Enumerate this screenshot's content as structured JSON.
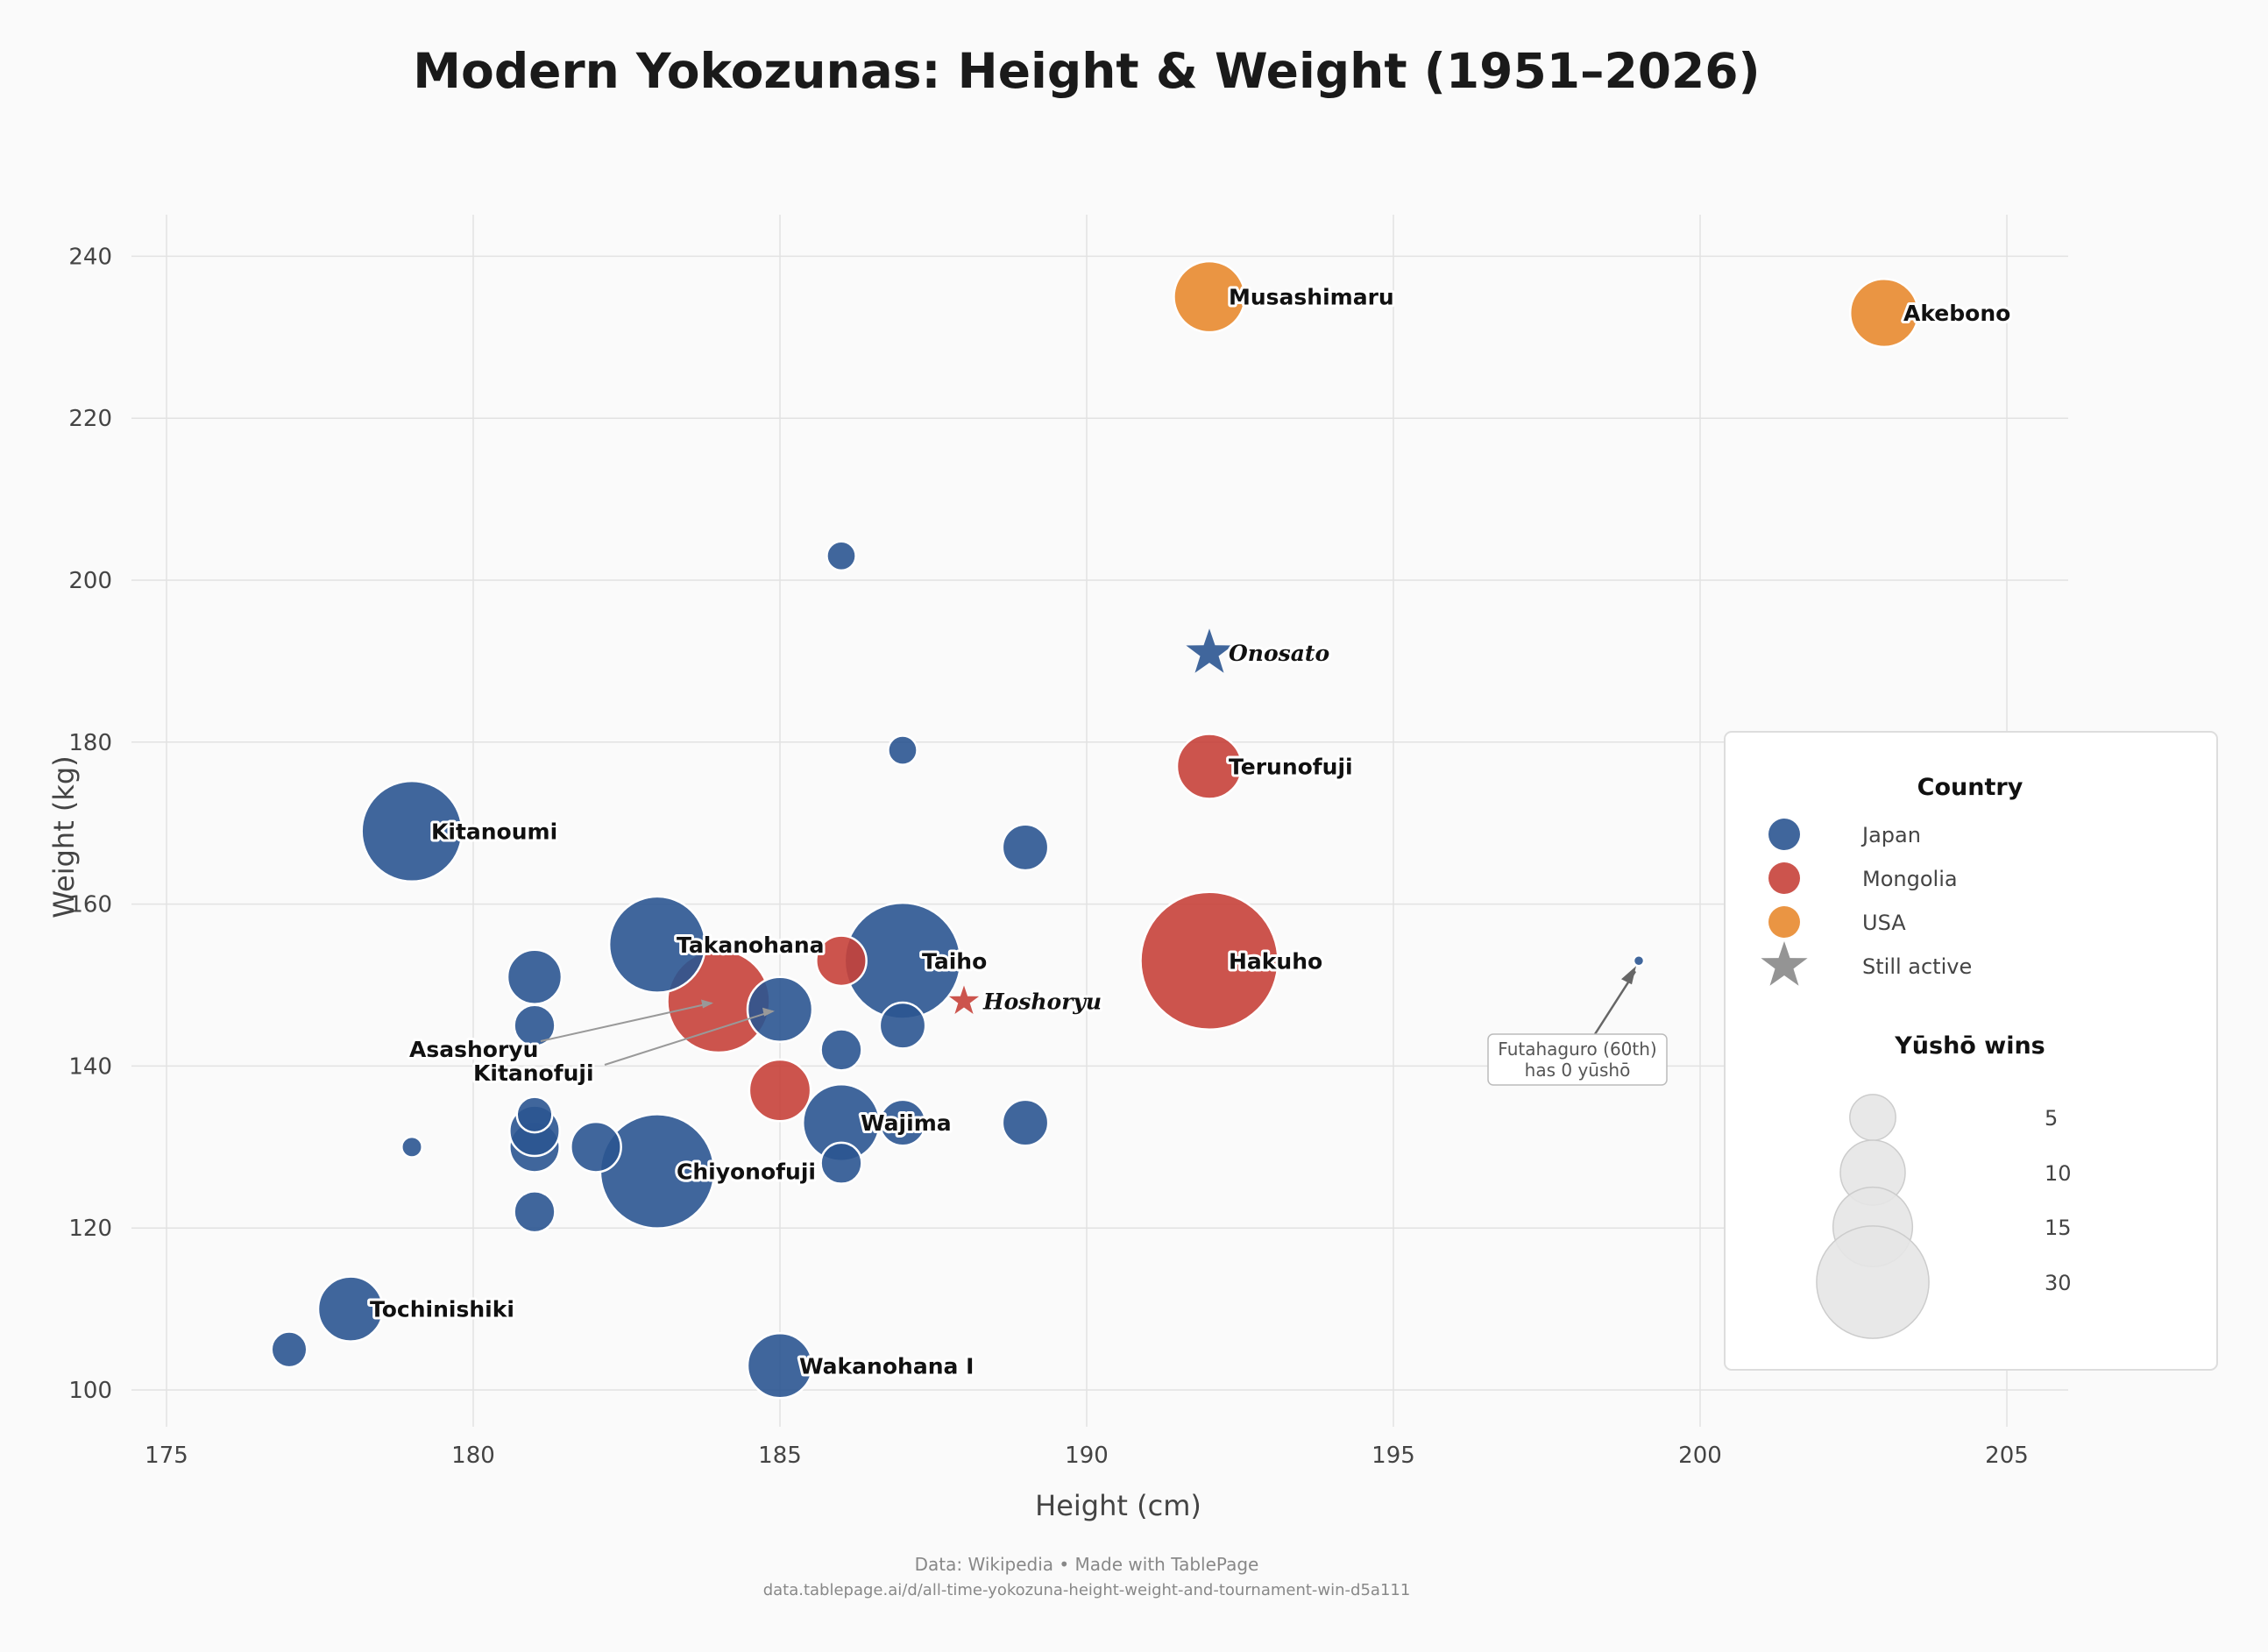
{
  "chart_data": {
    "type": "scatter",
    "title": "Modern Yokozunas: Height & Weight (1951–2026)",
    "xlabel": "Height (cm)",
    "ylabel": "Weight (kg)",
    "xlim": [
      175,
      206
    ],
    "ylim": [
      95,
      245
    ],
    "x_ticks": [
      175,
      180,
      185,
      190,
      195,
      200,
      205
    ],
    "y_ticks": [
      100,
      120,
      140,
      160,
      180,
      200,
      220,
      240
    ],
    "grid": true,
    "legend_placement": "right",
    "colors": {
      "Japan": "#2b5591",
      "Mongolia": "#c7413a",
      "USA": "#e8892f",
      "neutral": "#888888"
    },
    "country_legend": {
      "title": "Country",
      "items": [
        {
          "label": "Japan",
          "country": "Japan"
        },
        {
          "label": "Mongolia",
          "country": "Mongolia"
        },
        {
          "label": "USA",
          "country": "USA"
        },
        {
          "label": "Still active",
          "country": "neutral",
          "marker": "star"
        }
      ]
    },
    "size_legend": {
      "title": "Yūshō wins",
      "items": [
        {
          "label": "5",
          "value": 5
        },
        {
          "label": "10",
          "value": 10
        },
        {
          "label": "15",
          "value": 15
        },
        {
          "label": "30",
          "value": 30
        }
      ]
    },
    "points": [
      {
        "name": "Musashimaru",
        "x": 192,
        "y": 235,
        "yusho": 12,
        "country": "USA"
      },
      {
        "name": "Akebono",
        "x": 203,
        "y": 233,
        "yusho": 11,
        "country": "USA"
      },
      {
        "name": "Kitanoumi",
        "x": 179,
        "y": 169,
        "yusho": 24,
        "country": "Japan"
      },
      {
        "name": "Takanohana",
        "x": 183,
        "y": 155,
        "yusho": 22,
        "country": "Japan"
      },
      {
        "name": "Taiho",
        "x": 187,
        "y": 153,
        "yusho": 32,
        "country": "Japan"
      },
      {
        "name": "Hakuho",
        "x": 192,
        "y": 153,
        "yusho": 45,
        "country": "Mongolia"
      },
      {
        "name": "Asashoryu",
        "x": 184,
        "y": 148,
        "yusho": 25,
        "country": "Mongolia"
      },
      {
        "name": "Chiyonofuji",
        "x": 183,
        "y": 127,
        "yusho": 31,
        "country": "Japan"
      },
      {
        "name": "Wajima",
        "x": 186,
        "y": 133,
        "yusho": 14,
        "country": "Japan"
      },
      {
        "name": "Kitanofuji",
        "x": 185,
        "y": 147,
        "yusho": 10,
        "country": "Japan"
      },
      {
        "name": "Terunofuji",
        "x": 192,
        "y": 177,
        "yusho": 10,
        "country": "Mongolia"
      },
      {
        "name": "Tochinishiki",
        "x": 178,
        "y": 110,
        "yusho": 10,
        "country": "Japan"
      },
      {
        "name": "Wakanohana I",
        "x": 185,
        "y": 103,
        "yusho": 10,
        "country": "Japan"
      },
      {
        "name": "Onosato",
        "x": 192,
        "y": 191,
        "yusho": 5,
        "country": "Japan",
        "active": true
      },
      {
        "name": "Hoshoryu",
        "x": 188,
        "y": 148,
        "yusho": 3,
        "country": "Mongolia",
        "active": true
      },
      {
        "name": "Futahaguro",
        "x": 199,
        "y": 153,
        "yusho": 0,
        "country": "Japan"
      },
      {
        "x": 186,
        "y": 203,
        "yusho": 2,
        "country": "Japan"
      },
      {
        "x": 187,
        "y": 179,
        "yusho": 2,
        "country": "Japan"
      },
      {
        "x": 189,
        "y": 167,
        "yusho": 5,
        "country": "Japan"
      },
      {
        "x": 181,
        "y": 151,
        "yusho": 7,
        "country": "Japan"
      },
      {
        "x": 181,
        "y": 145,
        "yusho": 4,
        "country": "Japan"
      },
      {
        "x": 186,
        "y": 153,
        "yusho": 6,
        "country": "Mongolia"
      },
      {
        "x": 186,
        "y": 142,
        "yusho": 4,
        "country": "Japan"
      },
      {
        "x": 187,
        "y": 145,
        "yusho": 5,
        "country": "Japan"
      },
      {
        "x": 185,
        "y": 137,
        "yusho": 9,
        "country": "Mongolia"
      },
      {
        "x": 187,
        "y": 133,
        "yusho": 5,
        "country": "Japan"
      },
      {
        "x": 189,
        "y": 133,
        "yusho": 5,
        "country": "Japan"
      },
      {
        "x": 181,
        "y": 130,
        "yusho": 6,
        "country": "Japan"
      },
      {
        "x": 181,
        "y": 132,
        "yusho": 6,
        "country": "Japan"
      },
      {
        "x": 181,
        "y": 134,
        "yusho": 3,
        "country": "Japan"
      },
      {
        "x": 182,
        "y": 130,
        "yusho": 6,
        "country": "Japan"
      },
      {
        "x": 186,
        "y": 128,
        "yusho": 4,
        "country": "Japan"
      },
      {
        "x": 181,
        "y": 122,
        "yusho": 4,
        "country": "Japan"
      },
      {
        "x": 179,
        "y": 130,
        "yusho": 1,
        "country": "Japan"
      },
      {
        "x": 177,
        "y": 105,
        "yusho": 3,
        "country": "Japan"
      }
    ],
    "annotation": {
      "line1": "Futahaguro (60th)",
      "line2": "has 0 yūshō"
    }
  },
  "footer": {
    "line1": "Data: Wikipedia  •  Made with TablePage",
    "line2": "data.tablepage.ai/d/all-time-yokozuna-height-weight-and-tournament-win-d5a111"
  }
}
